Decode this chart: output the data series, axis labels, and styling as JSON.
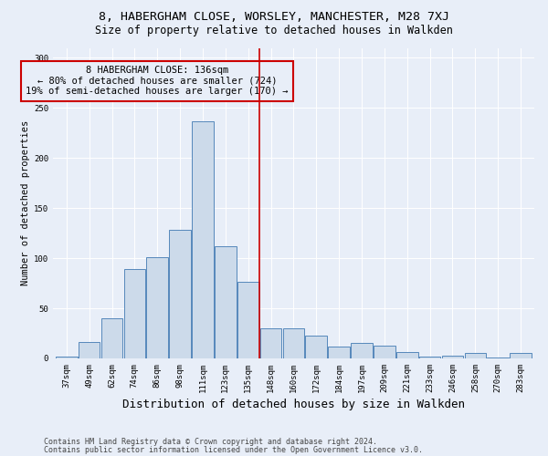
{
  "title1": "8, HABERGHAM CLOSE, WORSLEY, MANCHESTER, M28 7XJ",
  "title2": "Size of property relative to detached houses in Walkden",
  "xlabel": "Distribution of detached houses by size in Walkden",
  "ylabel": "Number of detached properties",
  "footer1": "Contains HM Land Registry data © Crown copyright and database right 2024.",
  "footer2": "Contains public sector information licensed under the Open Government Licence v3.0.",
  "bar_labels": [
    "37sqm",
    "49sqm",
    "62sqm",
    "74sqm",
    "86sqm",
    "98sqm",
    "111sqm",
    "123sqm",
    "135sqm",
    "148sqm",
    "160sqm",
    "172sqm",
    "184sqm",
    "197sqm",
    "209sqm",
    "221sqm",
    "233sqm",
    "246sqm",
    "258sqm",
    "270sqm",
    "283sqm"
  ],
  "bar_values": [
    2,
    16,
    40,
    89,
    101,
    128,
    237,
    112,
    76,
    30,
    30,
    23,
    12,
    15,
    13,
    6,
    2,
    3,
    5,
    1,
    5
  ],
  "bar_color": "#ccdaea",
  "bar_edge_color": "#5588bb",
  "property_line_label": "8 HABERGHAM CLOSE: 136sqm",
  "smaller_pct": "80% of detached houses are smaller (724)",
  "larger_pct": "19% of semi-detached houses are larger (170)",
  "annotation_box_color": "#cc0000",
  "vline_color": "#cc0000",
  "vline_x_index": 8.5,
  "ylim": [
    0,
    310
  ],
  "yticks": [
    0,
    50,
    100,
    150,
    200,
    250,
    300
  ],
  "background_color": "#e8eef8",
  "grid_color": "#ffffff",
  "title1_fontsize": 9.5,
  "title2_fontsize": 8.5,
  "xlabel_fontsize": 9,
  "ylabel_fontsize": 7.5,
  "tick_fontsize": 6.5,
  "footer_fontsize": 6.0,
  "annot_fontsize": 7.5
}
